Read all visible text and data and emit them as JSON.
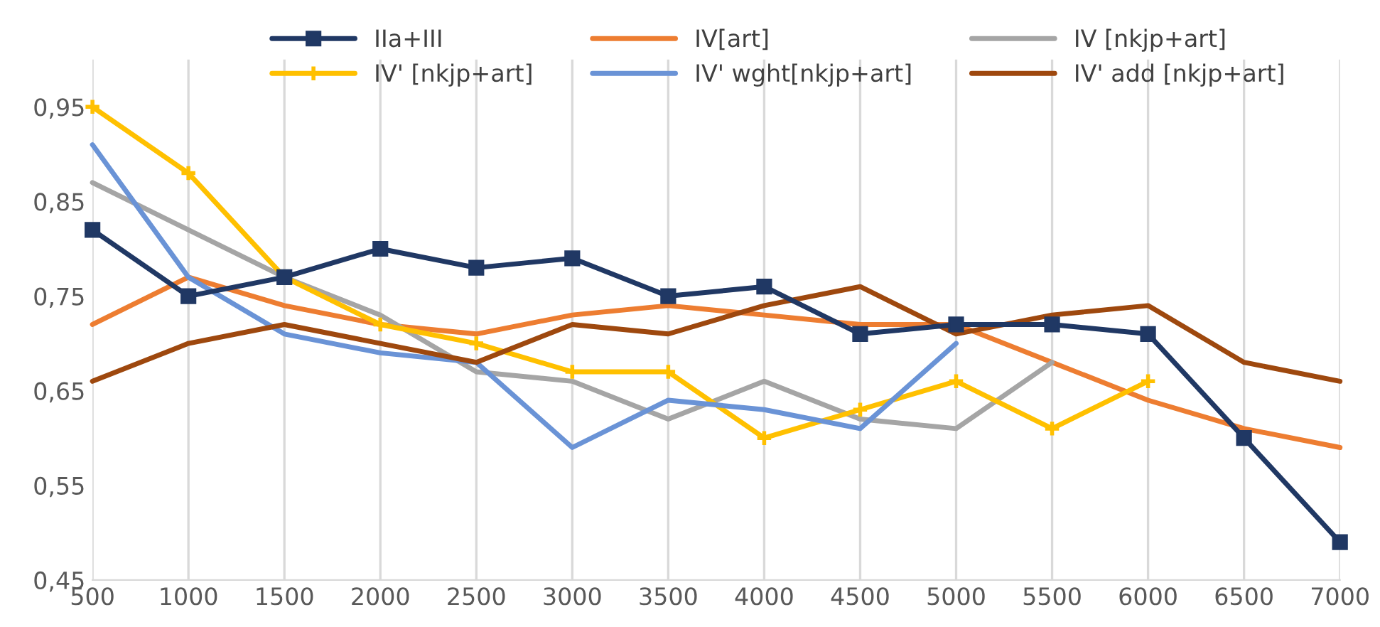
{
  "chart_data": {
    "type": "line",
    "x": [
      500,
      1000,
      1500,
      2000,
      2500,
      3000,
      3500,
      4000,
      4500,
      5000,
      5500,
      6000,
      6500,
      7000
    ],
    "xlim": [
      500,
      7000
    ],
    "xticks": [
      500,
      1000,
      1500,
      2000,
      2500,
      3000,
      3500,
      4000,
      4500,
      5000,
      5500,
      6000,
      6500,
      7000
    ],
    "ylim": [
      0.45,
      1.0
    ],
    "yticks": [
      {
        "value": 0.45,
        "label": "0,45"
      },
      {
        "value": 0.55,
        "label": "0,55"
      },
      {
        "value": 0.65,
        "label": "0,65"
      },
      {
        "value": 0.75,
        "label": "0,75"
      },
      {
        "value": 0.85,
        "label": "0,85"
      },
      {
        "value": 0.95,
        "label": "0,95"
      }
    ],
    "grid": "x",
    "legend": "top",
    "line_style": "solid",
    "series": [
      {
        "name": "IIa+III",
        "color": "#203864",
        "marker": "square",
        "values": [
          0.82,
          0.75,
          0.77,
          0.8,
          0.78,
          0.79,
          0.75,
          0.76,
          0.71,
          0.72,
          0.72,
          0.71,
          0.6,
          0.49
        ]
      },
      {
        "name": "IV[art]",
        "color": "#ed7d31",
        "marker": "none",
        "values": [
          0.72,
          0.77,
          0.74,
          0.72,
          0.71,
          0.73,
          0.74,
          0.73,
          0.72,
          0.72,
          0.68,
          0.64,
          0.61,
          0.59
        ]
      },
      {
        "name": "IV [nkjp+art]",
        "color": "#a5a5a5",
        "marker": "none",
        "values": [
          0.87,
          0.82,
          0.77,
          0.73,
          0.67,
          0.66,
          0.62,
          0.66,
          0.62,
          0.61,
          0.68,
          null,
          null,
          null
        ]
      },
      {
        "name": "IV' [nkjp+art]",
        "color": "#ffc000",
        "marker": "cross",
        "values": [
          0.95,
          0.88,
          0.77,
          0.72,
          0.7,
          0.67,
          0.67,
          0.6,
          0.63,
          0.66,
          0.61,
          0.66,
          null,
          null
        ]
      },
      {
        "name": "IV' wght[nkjp+art]",
        "color": "#6a93d6",
        "marker": "none",
        "values": [
          0.91,
          0.77,
          0.71,
          0.69,
          0.68,
          0.59,
          0.64,
          0.63,
          0.61,
          0.7,
          null,
          null,
          null,
          null
        ]
      },
      {
        "name": "IV' add [nkjp+art]",
        "color": "#9e480e",
        "marker": "none",
        "values": [
          0.66,
          0.7,
          0.72,
          0.7,
          0.68,
          0.72,
          0.71,
          0.74,
          0.76,
          0.71,
          0.73,
          0.74,
          0.68,
          0.66
        ]
      }
    ]
  }
}
